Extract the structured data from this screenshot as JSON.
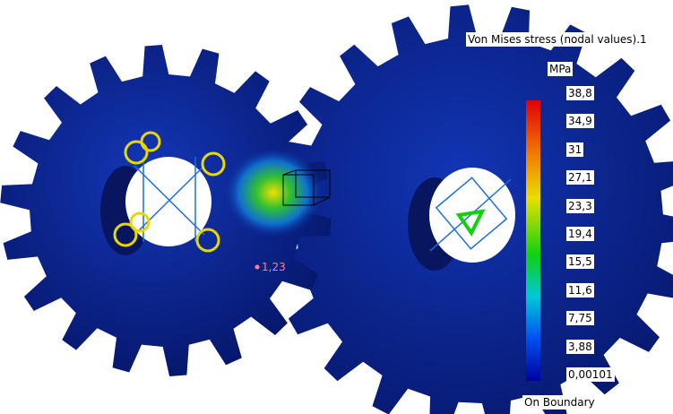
{
  "legend": {
    "title": "Von Mises stress (nodal values).1",
    "unit": "MPa",
    "labels": [
      "38,8",
      "34,9",
      "31",
      "27,1",
      "23,3",
      "19,4",
      "15,5",
      "11,6",
      "7,75",
      "3,88",
      "0,00101"
    ],
    "footer": "On Boundary"
  },
  "annotation": "1,23"
}
